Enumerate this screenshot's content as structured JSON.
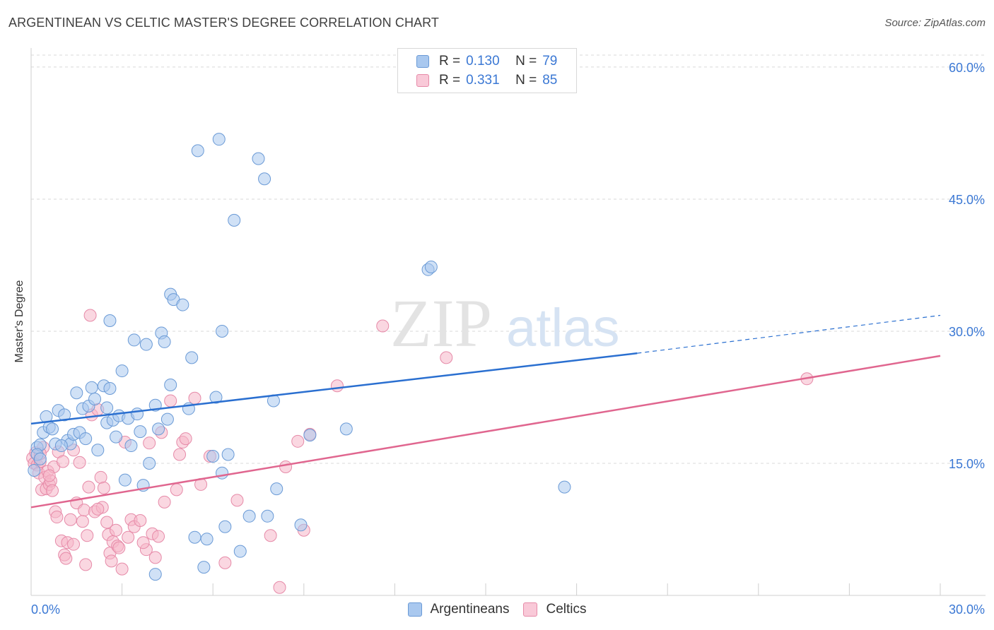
{
  "title": "ARGENTINEAN VS CELTIC MASTER'S DEGREE CORRELATION CHART",
  "source": "Source: ZipAtlas.com",
  "watermark": {
    "zip": "ZIP",
    "atlas": "atlas"
  },
  "legend_top": [
    {
      "r_label": "R = ",
      "r_value": "0.130",
      "n_label": "N = ",
      "n_value": "79"
    },
    {
      "r_label": "R = ",
      "r_value": "0.331",
      "n_label": "N = ",
      "n_value": "85"
    }
  ],
  "legend_bottom": [
    {
      "label": "Argentineans"
    },
    {
      "label": "Celtics"
    }
  ],
  "colors": {
    "argentineans_fill": "#a9c8ef",
    "argentineans_stroke": "#6a9ad6",
    "argentineans_line": "#2a6fd0",
    "celtics_fill": "#f5b7c9",
    "celtics_stroke": "#e68aa8",
    "celtics_line": "#e0668f",
    "tick_label": "#3b78d4",
    "grid": "#d9d9d9"
  },
  "chart_data": {
    "type": "scatter",
    "title": "ARGENTINEAN VS CELTIC MASTER'S DEGREE CORRELATION CHART",
    "xlabel": "",
    "ylabel": "Master's Degree",
    "xlim": [
      0,
      30
    ],
    "ylim": [
      0,
      62
    ],
    "x_tick_labels": [
      "0.0%",
      "30.0%"
    ],
    "y_ticks": [
      15,
      30,
      45,
      60
    ],
    "y_tick_labels": [
      "15.0%",
      "30.0%",
      "45.0%",
      "60.0%"
    ],
    "x_minor_ticks": [
      3,
      6,
      9,
      12,
      15,
      18,
      21,
      24,
      27,
      30
    ],
    "series": [
      {
        "name": "Argentineans",
        "R": 0.13,
        "N": 79,
        "trend": {
          "x": [
            0,
            20
          ],
          "y": [
            19.5,
            27.5
          ]
        },
        "trend_dashed": {
          "x": [
            20,
            30
          ],
          "y": [
            27.5,
            31.8
          ]
        },
        "points": [
          [
            0.1,
            14.2
          ],
          [
            0.2,
            16.8
          ],
          [
            0.3,
            17.1
          ],
          [
            0.4,
            18.5
          ],
          [
            0.5,
            20.3
          ],
          [
            0.6,
            19.1
          ],
          [
            0.7,
            18.9
          ],
          [
            0.8,
            17.2
          ],
          [
            0.9,
            21.0
          ],
          [
            1.1,
            20.5
          ],
          [
            1.2,
            17.6
          ],
          [
            1.3,
            17.2
          ],
          [
            1.4,
            18.3
          ],
          [
            1.5,
            23.0
          ],
          [
            1.6,
            18.5
          ],
          [
            1.7,
            21.2
          ],
          [
            1.8,
            17.8
          ],
          [
            1.9,
            21.5
          ],
          [
            2.0,
            23.6
          ],
          [
            2.1,
            22.3
          ],
          [
            2.2,
            16.5
          ],
          [
            2.4,
            23.8
          ],
          [
            2.5,
            19.6
          ],
          [
            2.6,
            23.5
          ],
          [
            2.5,
            21.3
          ],
          [
            2.6,
            31.2
          ],
          [
            2.7,
            19.9
          ],
          [
            2.8,
            18.0
          ],
          [
            2.9,
            20.4
          ],
          [
            3.0,
            25.5
          ],
          [
            3.2,
            20.1
          ],
          [
            3.3,
            17.0
          ],
          [
            3.4,
            29.0
          ],
          [
            3.5,
            20.6
          ],
          [
            3.6,
            18.6
          ],
          [
            3.8,
            28.5
          ],
          [
            3.9,
            15.0
          ],
          [
            4.1,
            21.6
          ],
          [
            4.3,
            29.8
          ],
          [
            4.4,
            28.8
          ],
          [
            4.5,
            20.0
          ],
          [
            4.6,
            34.2
          ],
          [
            4.7,
            33.6
          ],
          [
            4.6,
            23.9
          ],
          [
            4.2,
            18.9
          ],
          [
            3.1,
            13.1
          ],
          [
            3.7,
            12.5
          ],
          [
            4.1,
            2.4
          ],
          [
            5.0,
            33.0
          ],
          [
            5.3,
            27.0
          ],
          [
            5.2,
            21.2
          ],
          [
            5.5,
            50.5
          ],
          [
            5.4,
            6.6
          ],
          [
            5.7,
            3.2
          ],
          [
            5.8,
            6.4
          ],
          [
            6.0,
            15.8
          ],
          [
            6.1,
            22.5
          ],
          [
            6.2,
            51.8
          ],
          [
            6.3,
            13.9
          ],
          [
            6.4,
            7.8
          ],
          [
            6.5,
            16.0
          ],
          [
            6.3,
            30.0
          ],
          [
            6.7,
            42.6
          ],
          [
            6.9,
            5.0
          ],
          [
            7.2,
            9.0
          ],
          [
            7.5,
            49.6
          ],
          [
            7.7,
            47.3
          ],
          [
            7.8,
            9.0
          ],
          [
            8.0,
            22.1
          ],
          [
            8.1,
            12.1
          ],
          [
            8.9,
            8.0
          ],
          [
            9.2,
            18.2
          ],
          [
            10.4,
            18.9
          ],
          [
            13.1,
            37.0
          ],
          [
            13.2,
            37.3
          ],
          [
            17.6,
            12.3
          ],
          [
            0.2,
            16.0
          ],
          [
            1.0,
            17.0
          ],
          [
            0.3,
            15.5
          ]
        ]
      },
      {
        "name": "Celtics",
        "R": 0.331,
        "N": 85,
        "trend": {
          "x": [
            0,
            30
          ],
          "y": [
            10.0,
            27.2
          ]
        },
        "points": [
          [
            0.05,
            15.6
          ],
          [
            0.1,
            15.0
          ],
          [
            0.15,
            16.2
          ],
          [
            0.2,
            14.8
          ],
          [
            0.25,
            13.9
          ],
          [
            0.3,
            15.2
          ],
          [
            0.35,
            12.0
          ],
          [
            0.4,
            16.8
          ],
          [
            0.45,
            13.4
          ],
          [
            0.5,
            12.1
          ],
          [
            0.55,
            14.1
          ],
          [
            0.6,
            12.6
          ],
          [
            0.65,
            13.0
          ],
          [
            0.7,
            11.9
          ],
          [
            0.75,
            14.6
          ],
          [
            0.8,
            9.5
          ],
          [
            0.85,
            8.9
          ],
          [
            0.9,
            16.3
          ],
          [
            1.0,
            6.2
          ],
          [
            1.05,
            15.2
          ],
          [
            1.1,
            4.6
          ],
          [
            1.15,
            4.2
          ],
          [
            1.2,
            6.0
          ],
          [
            1.3,
            8.6
          ],
          [
            1.4,
            5.8
          ],
          [
            1.5,
            10.5
          ],
          [
            1.6,
            15.1
          ],
          [
            1.7,
            8.4
          ],
          [
            1.75,
            9.7
          ],
          [
            1.8,
            3.5
          ],
          [
            1.85,
            6.8
          ],
          [
            1.9,
            12.3
          ],
          [
            1.95,
            31.8
          ],
          [
            2.0,
            20.5
          ],
          [
            2.1,
            9.5
          ],
          [
            2.2,
            21.1
          ],
          [
            2.3,
            13.4
          ],
          [
            2.35,
            10.0
          ],
          [
            2.4,
            12.2
          ],
          [
            2.5,
            8.3
          ],
          [
            2.55,
            6.9
          ],
          [
            2.6,
            4.8
          ],
          [
            2.65,
            3.9
          ],
          [
            2.7,
            6.1
          ],
          [
            2.8,
            7.4
          ],
          [
            2.85,
            5.6
          ],
          [
            2.9,
            5.4
          ],
          [
            3.0,
            3.0
          ],
          [
            3.1,
            17.4
          ],
          [
            3.2,
            6.6
          ],
          [
            3.3,
            8.6
          ],
          [
            3.4,
            7.8
          ],
          [
            3.6,
            8.5
          ],
          [
            3.8,
            5.2
          ],
          [
            3.9,
            17.3
          ],
          [
            4.0,
            7.0
          ],
          [
            4.1,
            4.3
          ],
          [
            4.2,
            6.7
          ],
          [
            4.3,
            18.5
          ],
          [
            4.6,
            22.1
          ],
          [
            4.8,
            12.0
          ],
          [
            4.9,
            16.0
          ],
          [
            5.0,
            17.4
          ],
          [
            5.1,
            17.8
          ],
          [
            5.4,
            22.4
          ],
          [
            5.6,
            12.6
          ],
          [
            5.9,
            15.8
          ],
          [
            6.4,
            3.7
          ],
          [
            6.8,
            10.8
          ],
          [
            7.9,
            6.8
          ],
          [
            8.2,
            0.9
          ],
          [
            8.4,
            14.6
          ],
          [
            8.8,
            17.5
          ],
          [
            9.0,
            7.4
          ],
          [
            9.2,
            18.3
          ],
          [
            10.1,
            23.8
          ],
          [
            11.6,
            30.6
          ],
          [
            13.7,
            27.0
          ],
          [
            25.6,
            24.6
          ],
          [
            0.3,
            16.1
          ],
          [
            0.6,
            13.6
          ],
          [
            1.4,
            16.5
          ],
          [
            2.2,
            9.8
          ],
          [
            3.7,
            6.0
          ],
          [
            4.4,
            10.6
          ]
        ]
      }
    ]
  }
}
